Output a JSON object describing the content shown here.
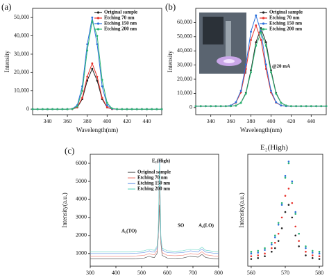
{
  "chart_data": [
    {
      "type": "line",
      "panel_label": "(a)",
      "x_label": "Wavelength(nm)",
      "y_label": "Intensity",
      "markers": true,
      "legend": "upper right",
      "x": [
        325,
        330,
        335,
        340,
        345,
        350,
        355,
        360,
        365,
        370,
        375,
        380,
        385,
        390,
        395,
        400,
        405,
        410,
        415,
        420,
        425,
        430,
        435,
        440,
        445,
        450,
        455
      ],
      "xlim": [
        325,
        455
      ],
      "xticks": [
        340,
        360,
        380,
        400,
        420,
        440
      ],
      "ylim": [
        -3000,
        55000
      ],
      "yticks": [
        0,
        {
          "value": 10000,
          "label": "10,000"
        },
        {
          "value": 20000,
          "label": "20,000"
        },
        {
          "value": 30000,
          "label": "30,000"
        },
        {
          "value": 40000,
          "label": "40,000"
        },
        {
          "value": 50000,
          "label": "50,000"
        }
      ],
      "series": [
        {
          "name": "Original sample",
          "color": "#222222",
          "values": [
            0,
            0,
            0,
            0,
            0,
            0,
            0,
            0,
            90,
            970,
            5500,
            15550,
            22000,
            15550,
            5500,
            970,
            90,
            0,
            0,
            0,
            0,
            0,
            0,
            0,
            0,
            0,
            0
          ]
        },
        {
          "name": "Etching 70 nm",
          "color": "#e8302a",
          "values": [
            0,
            0,
            0,
            0,
            0,
            0,
            0,
            0,
            100,
            1100,
            6250,
            17700,
            25000,
            17700,
            6250,
            1100,
            100,
            0,
            0,
            0,
            0,
            0,
            0,
            0,
            0,
            0,
            0
          ]
        },
        {
          "name": "Etching 150 nm",
          "color": "#2a6fdb",
          "values": [
            0,
            0,
            0,
            0,
            0,
            0,
            0,
            0,
            200,
            2200,
            12500,
            35400,
            50000,
            35400,
            12500,
            2200,
            200,
            0,
            0,
            0,
            0,
            0,
            0,
            0,
            0,
            0,
            0
          ]
        },
        {
          "name": "Etching 200 nm",
          "color": "#2bb673",
          "values": [
            0,
            0,
            0,
            0,
            0,
            0,
            0,
            0,
            150,
            1500,
            10000,
            32000,
            48000,
            40000,
            16000,
            3500,
            400,
            50,
            0,
            0,
            0,
            0,
            0,
            0,
            0,
            0,
            0
          ]
        }
      ]
    },
    {
      "type": "line",
      "panel_label": "(b)",
      "x_label": "Wavelength(nm)",
      "y_label": "Intensity",
      "markers": true,
      "legend": "upper right",
      "annotations": [
        "@20 mA"
      ],
      "x": [
        325,
        330,
        335,
        340,
        345,
        350,
        355,
        360,
        365,
        370,
        375,
        380,
        385,
        390,
        395,
        400,
        405,
        410,
        415,
        420,
        425,
        430,
        435,
        440,
        445,
        450,
        455
      ],
      "xlim": [
        325,
        455
      ],
      "xticks": [
        340,
        360,
        380,
        400,
        420,
        440
      ],
      "ylim": [
        -5000,
        70000
      ],
      "yticks": [
        0,
        {
          "value": 10000,
          "label": "10,000"
        },
        {
          "value": 20000,
          "label": "20,000"
        },
        {
          "value": 30000,
          "label": "30,000"
        },
        {
          "value": 40000,
          "label": "40,000"
        },
        {
          "value": 50000,
          "label": "50,000"
        },
        {
          "value": 60000,
          "label": "60,000"
        }
      ],
      "series": [
        {
          "name": "Original sample",
          "color": "#222222",
          "values": [
            1000,
            1000,
            1000,
            1000,
            1000,
            1000,
            1000,
            1000,
            1400,
            3400,
            10400,
            26300,
            46100,
            56000,
            46100,
            26300,
            10400,
            3400,
            1400,
            1000,
            1000,
            1000,
            1000,
            1000,
            1000,
            1000,
            1000
          ]
        },
        {
          "name": "Etching 70 nm",
          "color": "#e8302a",
          "values": [
            1000,
            1000,
            1000,
            1000,
            1000,
            1000,
            1000,
            1500,
            3500,
            10700,
            27200,
            47700,
            58000,
            47700,
            27200,
            10700,
            3500,
            1500,
            1000,
            1000,
            1000,
            1000,
            1000,
            1000,
            1000,
            1000,
            1000
          ]
        },
        {
          "name": "Etching 150 nm",
          "color": "#2a6fdb",
          "values": [
            1000,
            1000,
            1000,
            1000,
            1000,
            1000,
            1000,
            1500,
            3800,
            11900,
            30400,
            53500,
            65000,
            53500,
            30400,
            11900,
            3800,
            1500,
            1000,
            1000,
            1000,
            1000,
            1000,
            1000,
            1000,
            1000,
            1000
          ]
        },
        {
          "name": "Etching 200 nm",
          "color": "#2bb673",
          "values": [
            1000,
            1000,
            1000,
            1000,
            1000,
            1000,
            1000,
            1000,
            1400,
            3300,
            9800,
            24900,
            43600,
            53000,
            43600,
            24900,
            9800,
            3300,
            1400,
            1000,
            1000,
            1000,
            1000,
            1000,
            1000,
            1000,
            1000
          ]
        }
      ]
    },
    {
      "type": "line",
      "panel_label": "(c)",
      "x_label": "Raman shift(cm⁻¹)",
      "y_label": "Intensity(a.u.)",
      "markers": false,
      "legend": "upper center",
      "annotations": [
        "E₂(High)",
        "A₁(TO)",
        "SO",
        "A₁(LO)"
      ],
      "x": [
        300,
        330,
        360,
        390,
        420,
        450,
        480,
        510,
        530,
        540,
        550,
        560,
        565,
        570,
        575,
        580,
        600,
        630,
        660,
        690,
        720,
        735,
        750,
        780,
        800
      ],
      "xlim": [
        300,
        800
      ],
      "xticks": [
        300,
        400,
        500,
        600,
        700,
        800
      ],
      "ylim": [
        300,
        6500
      ],
      "yticks": [
        1000,
        2000,
        3000,
        4000,
        5000,
        6000
      ],
      "series": [
        {
          "name": "Original sample",
          "color": "#555555",
          "values": [
            700,
            700,
            700,
            700,
            700,
            700,
            720,
            750,
            850,
            800,
            780,
            1000,
            1900,
            3700,
            1600,
            900,
            750,
            730,
            750,
            850,
            800,
            950,
            780,
            720,
            700
          ]
        },
        {
          "name": "Etching 70 nm",
          "color": "#f08a80",
          "values": [
            850,
            850,
            850,
            850,
            850,
            850,
            870,
            900,
            1000,
            950,
            930,
            1150,
            2050,
            4650,
            1750,
            1050,
            900,
            880,
            900,
            1000,
            950,
            1100,
            930,
            870,
            850
          ]
        },
        {
          "name": "Etching 150 nm",
          "color": "#6f9be8",
          "values": [
            1000,
            1000,
            1000,
            1000,
            1000,
            1000,
            1020,
            1050,
            1150,
            1100,
            1080,
            1300,
            2200,
            6200,
            1900,
            1200,
            1050,
            1030,
            1050,
            1150,
            1100,
            1250,
            1080,
            1020,
            1000
          ]
        },
        {
          "name": "Etching 200 nm",
          "color": "#6fd8c8",
          "values": [
            1100,
            1100,
            1100,
            1100,
            1100,
            1100,
            1120,
            1150,
            1250,
            1200,
            1180,
            1400,
            2300,
            6000,
            2000,
            1300,
            1150,
            1130,
            1150,
            1250,
            1200,
            1350,
            1180,
            1120,
            1100
          ]
        }
      ]
    },
    {
      "type": "scatter",
      "title": "E₂(High)",
      "x_label": "Raman shift(cm⁻¹)",
      "y_label": "Intensity(a.u.)",
      "x": [
        560,
        562,
        564,
        566,
        567,
        568,
        569,
        570,
        571,
        572,
        573,
        574,
        576,
        578,
        580
      ],
      "xlim": [
        559,
        581
      ],
      "xticks": [
        560,
        570,
        580
      ],
      "ylim": [
        300,
        6500
      ],
      "series": [
        {
          "name": "Original sample",
          "color": "#222222",
          "values": [
            700,
            750,
            850,
            1100,
            1300,
            1700,
            2400,
            3300,
            3700,
            3000,
            2000,
            1400,
            900,
            750,
            700
          ]
        },
        {
          "name": "Etching 70 nm",
          "color": "#e8302a",
          "values": [
            850,
            900,
            1000,
            1300,
            1600,
            2100,
            3000,
            4200,
            4600,
            3800,
            2500,
            1700,
            1100,
            900,
            850
          ]
        },
        {
          "name": "Etching 150 nm",
          "color": "#2a6fdb",
          "values": [
            1000,
            1050,
            1200,
            1500,
            1900,
            2600,
            3700,
            5300,
            6100,
            5000,
            3300,
            2100,
            1300,
            1050,
            1000
          ]
        },
        {
          "name": "Etching 200 nm",
          "color": "#2bb673",
          "values": [
            1100,
            1150,
            1300,
            1600,
            2000,
            2700,
            3800,
            5200,
            6000,
            4900,
            3200,
            2100,
            1400,
            1150,
            1100
          ]
        }
      ]
    }
  ]
}
